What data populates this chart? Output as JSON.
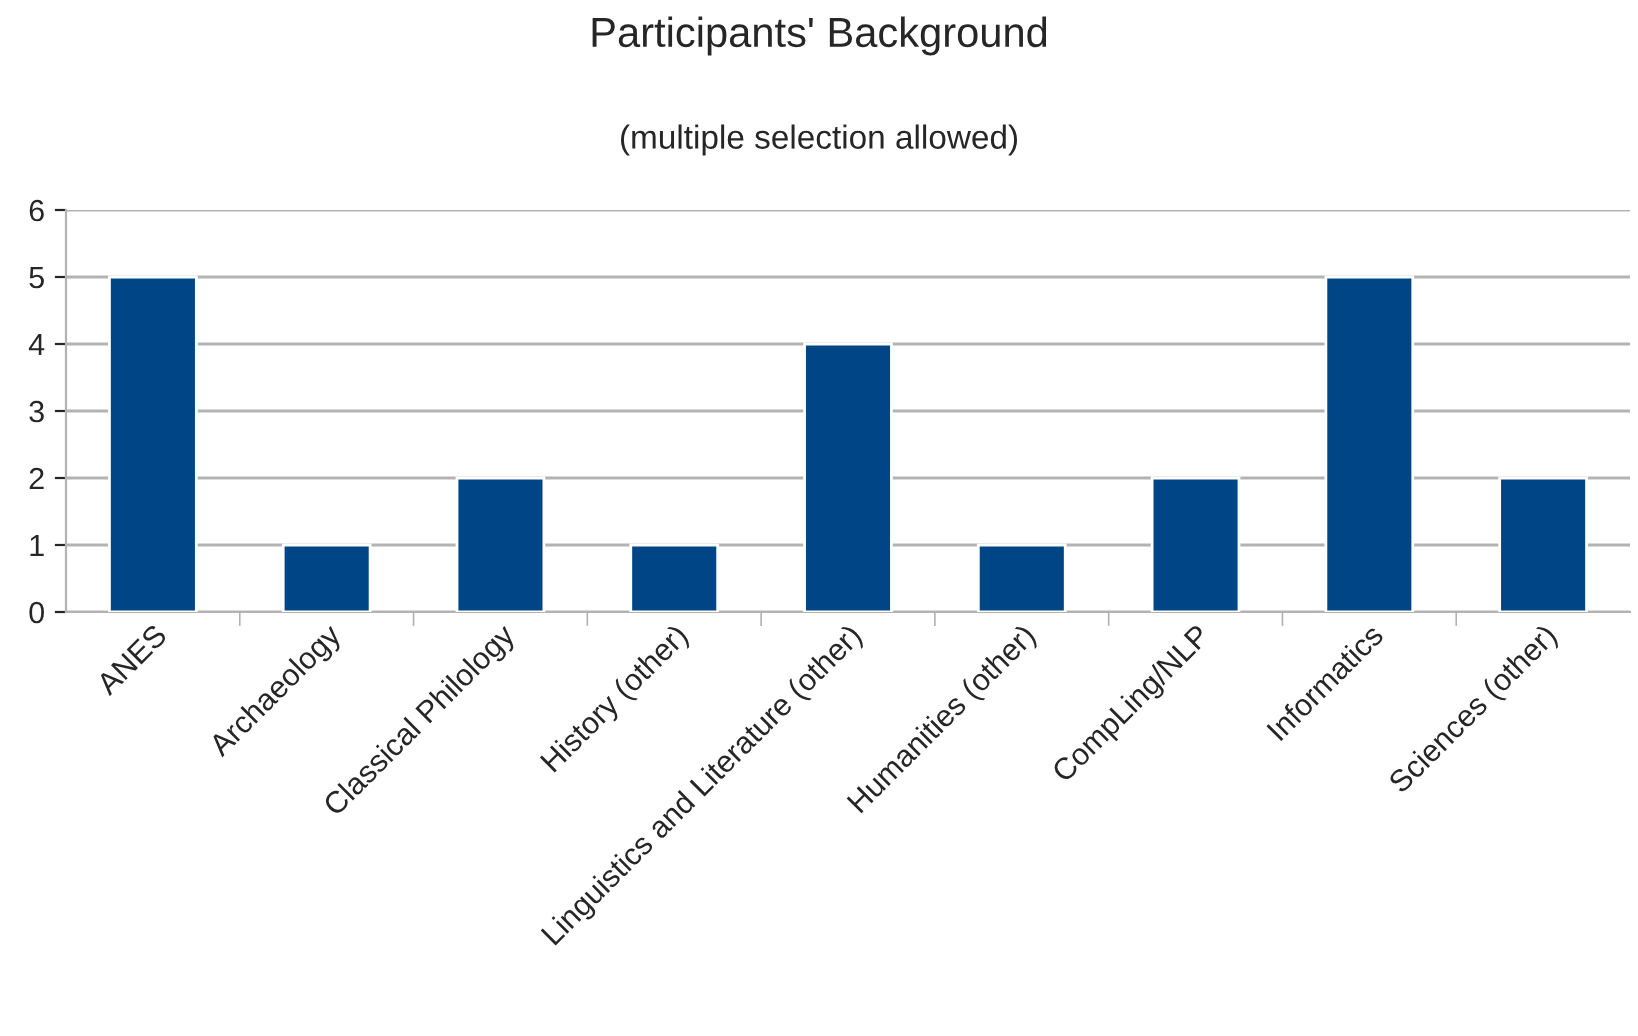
{
  "chart_data": {
    "type": "bar",
    "title": "Participants' Background",
    "subtitle": "(multiple selection allowed)",
    "categories": [
      "ANES",
      "Archaeology",
      "Classical Philology",
      "History (other)",
      "Linguistics and Literature (other)",
      "Humanities (other)",
      "CompLing/NLP",
      "Informatics",
      "Sciences (other)"
    ],
    "values": [
      5,
      1,
      2,
      1,
      4,
      1,
      2,
      5,
      2
    ],
    "color": "#004586",
    "ylim": [
      0,
      6
    ],
    "yticks": [
      0,
      1,
      2,
      3,
      4,
      5,
      6
    ],
    "grid": "y",
    "legend": false
  }
}
